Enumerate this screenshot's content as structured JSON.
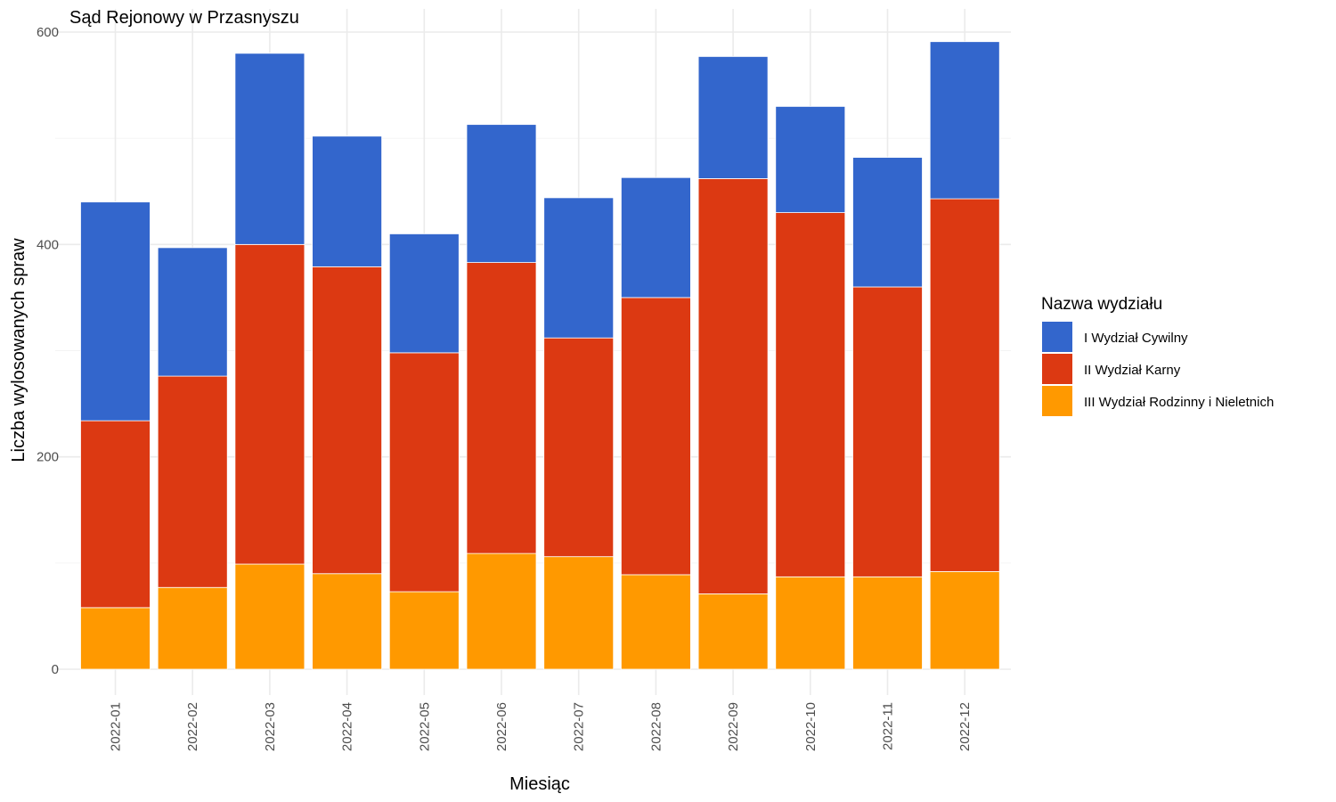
{
  "chart_data": {
    "type": "bar",
    "stacked": true,
    "title": "Sąd Rejonowy w Przasnyszu",
    "xlabel": "Miesiąc",
    "ylabel": "Liczba wylosowanych spraw",
    "ylim": [
      0,
      600
    ],
    "yticks": [
      0,
      200,
      400,
      600
    ],
    "grid": true,
    "legend": {
      "title": "Nazwa wydziału",
      "position": "right"
    },
    "categories": [
      "2022-01",
      "2022-02",
      "2022-03",
      "2022-04",
      "2022-05",
      "2022-06",
      "2022-07",
      "2022-08",
      "2022-09",
      "2022-10",
      "2022-11",
      "2022-12"
    ],
    "series": [
      {
        "name": "III Wydział Rodzinny i Nieletnich",
        "color": "#ff9900",
        "values": [
          58,
          77,
          99,
          90,
          73,
          109,
          106,
          89,
          71,
          87,
          87,
          92
        ]
      },
      {
        "name": "II Wydział Karny",
        "color": "#dc3912",
        "values": [
          176,
          199,
          301,
          289,
          225,
          274,
          206,
          261,
          391,
          343,
          273,
          351
        ]
      },
      {
        "name": "I Wydział Cywilny",
        "color": "#3366cc",
        "values": [
          206,
          121,
          180,
          123,
          112,
          130,
          132,
          113,
          115,
          100,
          122,
          148
        ]
      }
    ],
    "legend_order": [
      "I Wydział Cywilny",
      "II Wydział Karny",
      "III Wydział Rodzinny i Nieletnich"
    ]
  }
}
